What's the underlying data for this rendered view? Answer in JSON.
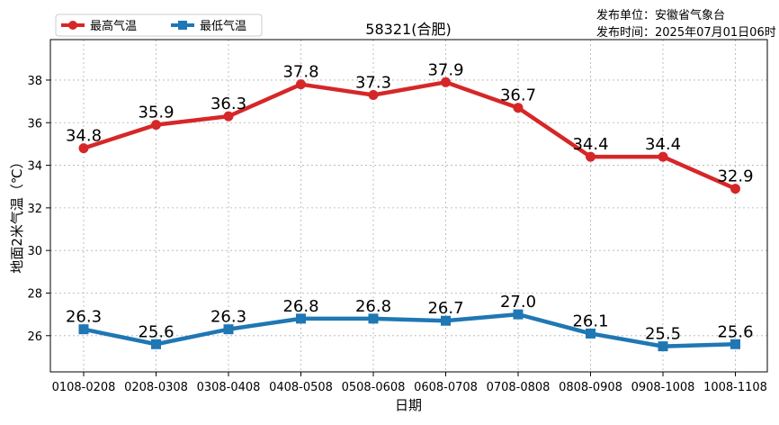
{
  "chart_data": {
    "type": "line",
    "title": "58321(合肥)",
    "source_lines": [
      "发布单位：安徽省气象台",
      "发布时间：2025年07月01日06时"
    ],
    "xlabel": "日期",
    "ylabel": "地面2米气温（℃）",
    "categories": [
      "0108-0208",
      "0208-0308",
      "0308-0408",
      "0408-0508",
      "0508-0608",
      "0608-0708",
      "0708-0808",
      "0808-0908",
      "0908-1008",
      "1008-1108"
    ],
    "series": [
      {
        "name": "最高气温",
        "color": "#d62728",
        "marker": "circle",
        "values": [
          34.8,
          35.9,
          36.3,
          37.8,
          37.3,
          37.9,
          36.7,
          34.4,
          34.4,
          32.9
        ]
      },
      {
        "name": "最低气温",
        "color": "#1f77b4",
        "marker": "square",
        "values": [
          26.3,
          25.6,
          26.3,
          26.8,
          26.8,
          26.7,
          27.0,
          26.1,
          25.5,
          25.6
        ]
      }
    ],
    "ylim": [
      24.3,
      39.9
    ],
    "yticks": [
      26,
      28,
      30,
      32,
      34,
      36,
      38
    ],
    "grid": true,
    "legend": "top-left"
  }
}
